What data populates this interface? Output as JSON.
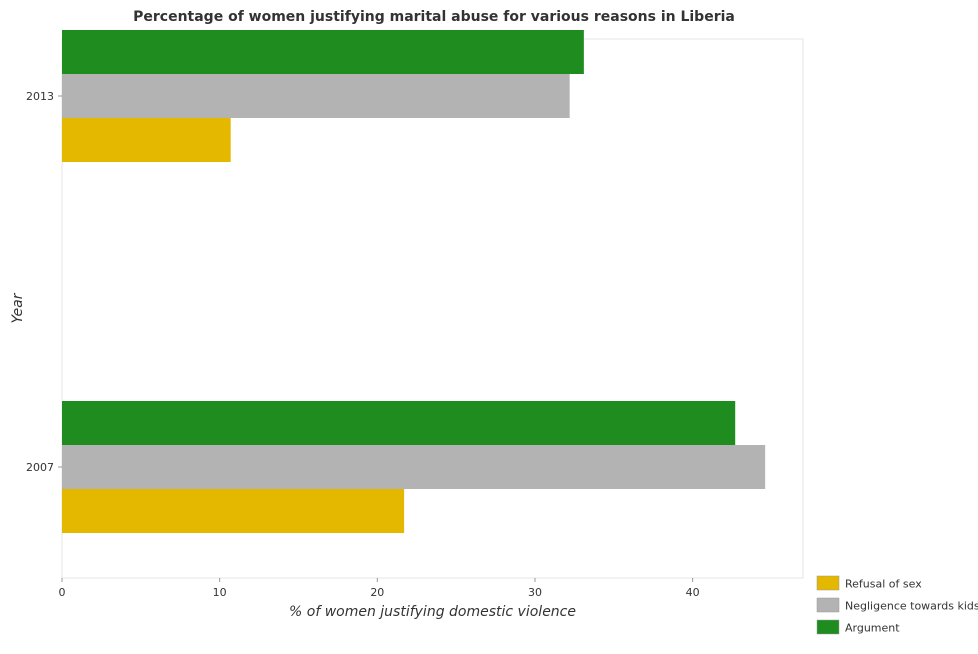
{
  "chart_data": {
    "type": "bar",
    "orientation": "horizontal",
    "title": "Percentage of women justifying marital abuse for various reasons in Liberia",
    "xlabel": "% of women justifying domestic violence",
    "ylabel": "Year",
    "categories": [
      "2007",
      "2013"
    ],
    "xlim": [
      0,
      47
    ],
    "xticks": [
      "0",
      "10",
      "20",
      "30",
      "40"
    ],
    "grid": false,
    "legend_position": "bottom-right",
    "series": [
      {
        "name": "Refusal of sex",
        "color": "#e5b800",
        "values": [
          21.7,
          10.7
        ]
      },
      {
        "name": "Negligence towards kids",
        "color": "#b3b3b3",
        "values": [
          44.6,
          32.2
        ]
      },
      {
        "name": "Argument",
        "color": "#1e8c1e",
        "values": [
          42.7,
          33.1
        ]
      }
    ]
  }
}
